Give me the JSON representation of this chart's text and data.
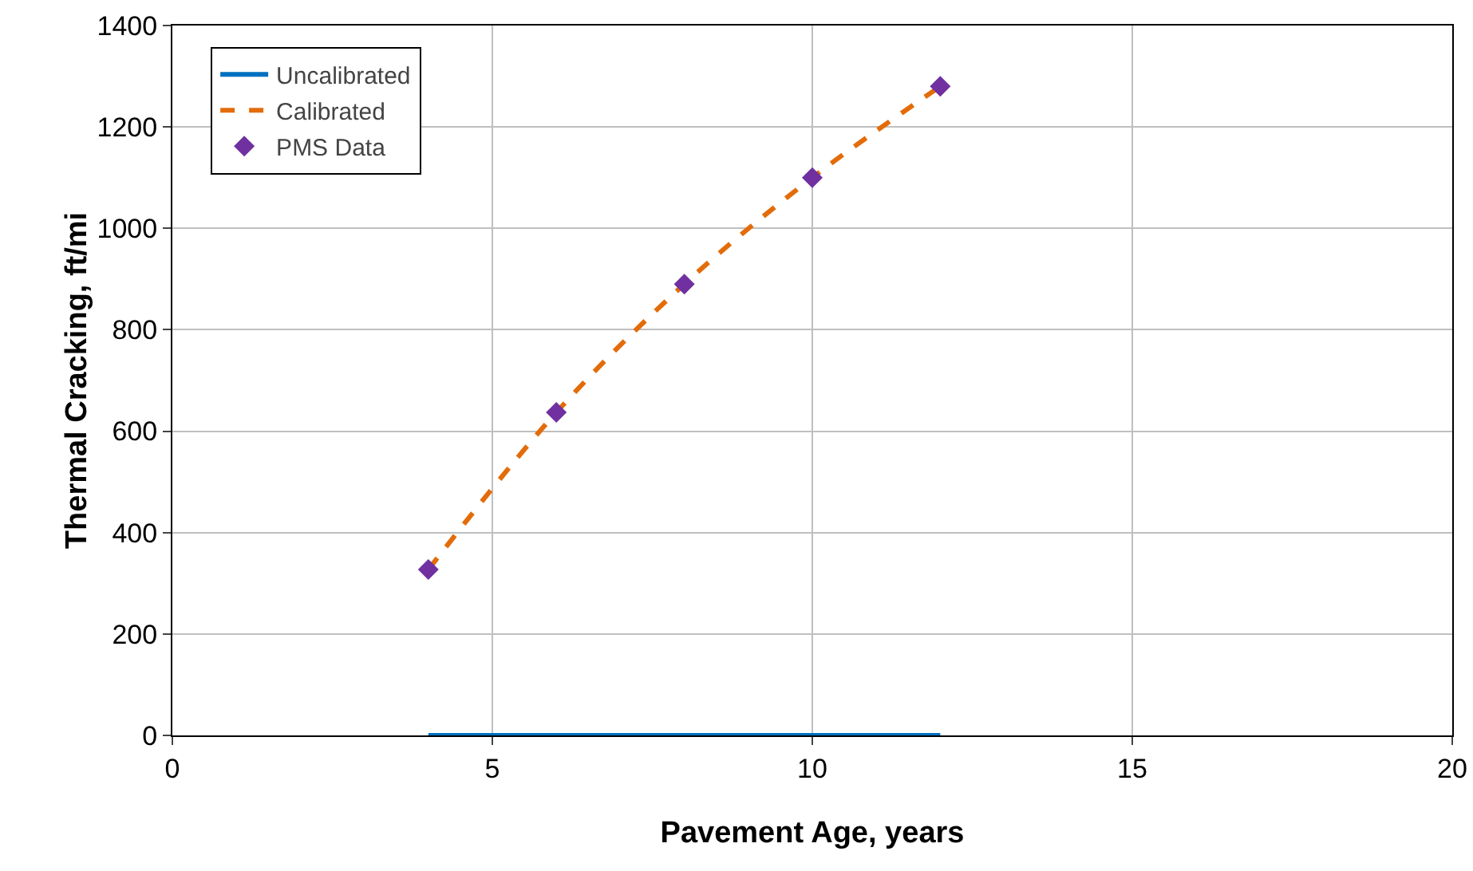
{
  "chart_data": {
    "type": "line",
    "xlabel": "Pavement Age, years",
    "ylabel": "Thermal Cracking, ft/mi",
    "xlim": [
      0,
      20
    ],
    "xticks": [
      0,
      5,
      10,
      15,
      20
    ],
    "ylim": [
      0,
      1400
    ],
    "yticks": [
      0,
      200,
      400,
      600,
      800,
      1000,
      1200,
      1400
    ],
    "grid": true,
    "legend": "top left",
    "series": [
      {
        "name": "Uncalibrated",
        "color": "#0070c0",
        "line_style": "solid",
        "marker": "none",
        "x": [
          4,
          6,
          8,
          10,
          12
        ],
        "values": [
          0,
          0,
          0,
          0,
          0
        ]
      },
      {
        "name": "Calibrated",
        "color": "#e36c0a",
        "line_style": "dashed",
        "marker": "none",
        "x": [
          4,
          6,
          8,
          10,
          12
        ],
        "values": [
          327,
          637,
          890,
          1100,
          1280
        ]
      },
      {
        "name": "PMS Data",
        "type": "scatter",
        "color": "#7030a0",
        "marker": "diamond",
        "x": [
          4,
          6,
          8,
          10,
          12
        ],
        "values": [
          327,
          637,
          890,
          1100,
          1280
        ]
      }
    ]
  }
}
